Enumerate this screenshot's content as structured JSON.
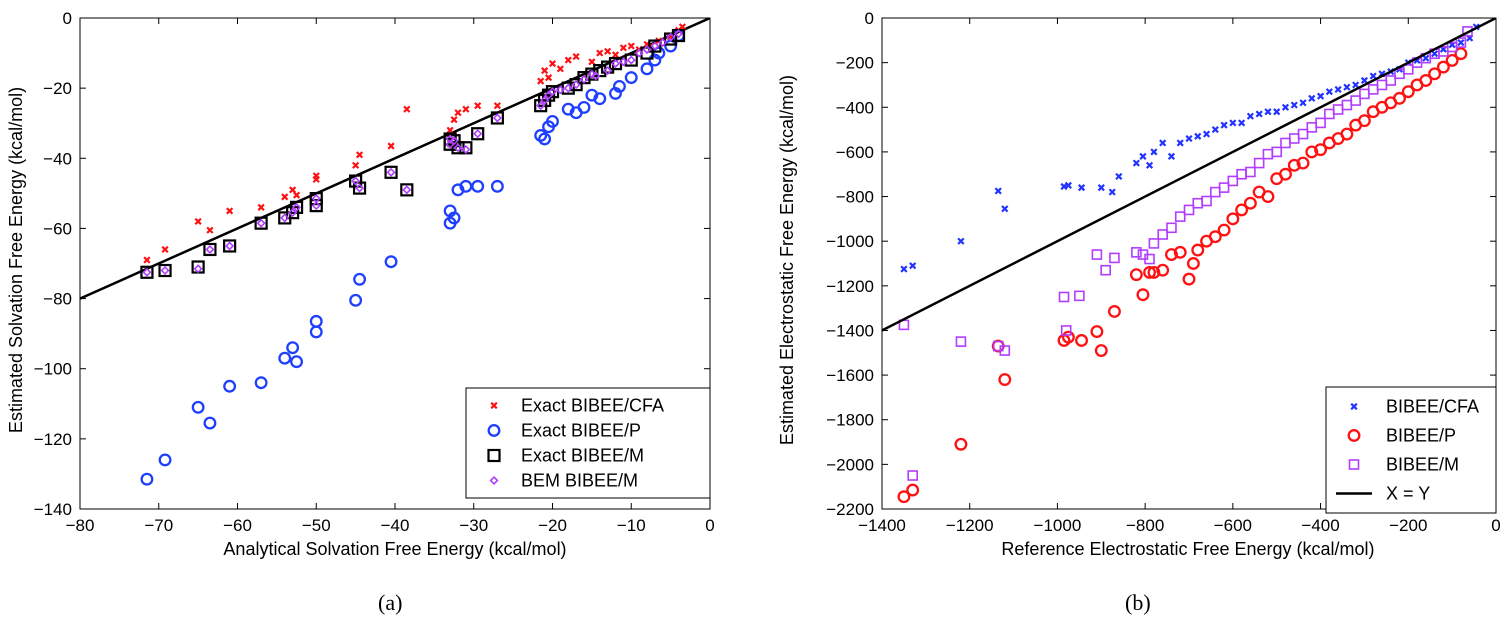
{
  "captions": [
    "(a)",
    "(b)"
  ],
  "colors": {
    "cfa": "#ff1111",
    "p": "#1f3fff",
    "m_exact": "#000000",
    "m_bem": "#b23cff",
    "b_cfa": "#2233ff",
    "b_p": "#ff1111",
    "b_m": "#b23cff",
    "line": "#000000"
  },
  "chart_data": [
    {
      "type": "scatter",
      "xlabel": "Analytical Solvation Free Energy (kcal/mol)",
      "ylabel": "Estimated Solvation Free Energy (kcal/mol)",
      "xlim": [
        -80,
        0
      ],
      "ylim": [
        -140,
        0
      ],
      "xticks": [
        "-80",
        "-70",
        "-60",
        "-50",
        "-40",
        "-30",
        "-20",
        "-10",
        "0"
      ],
      "yticks": [
        "-140",
        "-120",
        "-100",
        "-80",
        "-60",
        "-40",
        "-20",
        "0"
      ],
      "grid": false,
      "legend_position": "bottom-right",
      "reference_line": {
        "x": [
          -80,
          0
        ],
        "y": [
          -80,
          0
        ]
      },
      "series": [
        {
          "name": "Exact BIBEE/CFA",
          "marker": "x",
          "color_key": "cfa",
          "x": [
            -71.5,
            -69.2,
            -65,
            -63.5,
            -61,
            -57,
            -54,
            -53,
            -52.5,
            -50,
            -50,
            -45,
            -44.5,
            -40.5,
            -38.5,
            -33,
            -32.5,
            -32,
            -31,
            -29.5,
            -27,
            -21.5,
            -21,
            -20.5,
            -20,
            -19,
            -18,
            -17,
            -15,
            -14,
            -13,
            -12,
            -11,
            -10,
            -9,
            -8,
            -7.5,
            -6.5,
            -5,
            -4,
            -3.5
          ],
          "y": [
            -69,
            -66,
            -58,
            -60.5,
            -55,
            -54,
            -51,
            -49,
            -50.5,
            -45,
            -46,
            -42,
            -39,
            -36.5,
            -26,
            -32,
            -29,
            -27,
            -26,
            -25,
            -25,
            -18,
            -15,
            -17,
            -13,
            -14.5,
            -12,
            -11,
            -12.5,
            -10,
            -9.5,
            -10.5,
            -8.5,
            -8,
            -9,
            -7.5,
            -8,
            -6.5,
            -5.5,
            -3.5,
            -2.5
          ]
        },
        {
          "name": "Exact BIBEE/P",
          "marker": "o",
          "color_key": "p",
          "x": [
            -71.5,
            -69.2,
            -65,
            -63.5,
            -61,
            -57,
            -54,
            -53,
            -52.5,
            -50,
            -50,
            -45,
            -44.5,
            -40.5,
            -33,
            -33,
            -32.5,
            -32,
            -31,
            -29.5,
            -27,
            -21.5,
            -21,
            -20.5,
            -20,
            -18,
            -17,
            -16,
            -15,
            -14,
            -12,
            -11.5,
            -10,
            -8,
            -7,
            -6.5,
            -5,
            -4
          ],
          "y": [
            -131.5,
            -126,
            -111,
            -115.5,
            -105,
            -104,
            -97,
            -94,
            -98,
            -86.5,
            -89.5,
            -80.5,
            -74.5,
            -69.5,
            -55,
            -58.5,
            -57,
            -49,
            -48,
            -48,
            -48,
            -33.5,
            -34.5,
            -31,
            -29.5,
            -26,
            -27,
            -25.5,
            -22,
            -23,
            -21.5,
            -19.5,
            -17,
            -14.5,
            -12,
            -10,
            -8,
            -5
          ]
        },
        {
          "name": "Exact BIBEE/M",
          "marker": "square",
          "color_key": "m_exact",
          "x": [
            -71.5,
            -69.2,
            -65,
            -63.5,
            -61,
            -57,
            -54,
            -53,
            -52.5,
            -50,
            -50,
            -45,
            -44.5,
            -40.5,
            -38.5,
            -33,
            -33,
            -32.5,
            -32,
            -31,
            -29.5,
            -27,
            -21.5,
            -21,
            -20.5,
            -20,
            -18,
            -17,
            -16,
            -15,
            -14,
            -13,
            -12,
            -10,
            -8,
            -7,
            -5,
            -4
          ],
          "y": [
            -72.5,
            -72,
            -71,
            -66,
            -65,
            -58.5,
            -57,
            -55.5,
            -54,
            -51.5,
            -53.5,
            -46.5,
            -48.5,
            -44,
            -49,
            -34.5,
            -36,
            -35,
            -37,
            -37,
            -33,
            -28.5,
            -25,
            -23.5,
            -22,
            -21,
            -20,
            -19,
            -17,
            -16,
            -15,
            -14,
            -13,
            -12,
            -10,
            -8,
            -6,
            -5
          ]
        },
        {
          "name": "BEM BIBEE/M",
          "marker": "diamond",
          "color_key": "m_bem",
          "x": [
            -71.5,
            -69.2,
            -65,
            -63.5,
            -61,
            -57,
            -54,
            -53,
            -52.5,
            -50,
            -50,
            -45,
            -44.5,
            -40.5,
            -38.5,
            -33,
            -33,
            -32.5,
            -32,
            -31,
            -29.5,
            -27,
            -21.5,
            -21,
            -20.5,
            -20,
            -19,
            -18,
            -17,
            -16,
            -15,
            -14.5,
            -13,
            -12,
            -11,
            -10,
            -9,
            -8,
            -7,
            -6,
            -5,
            -4
          ],
          "y": [
            -72.5,
            -72,
            -71.5,
            -66,
            -65,
            -58.5,
            -57,
            -55.5,
            -54,
            -51.5,
            -53.5,
            -46.5,
            -48.5,
            -44,
            -49,
            -34.5,
            -36,
            -35,
            -37,
            -37.5,
            -33,
            -28.5,
            -25,
            -23.5,
            -22,
            -21,
            -20.5,
            -20,
            -19,
            -17.5,
            -16,
            -16.5,
            -15,
            -13,
            -12.5,
            -12,
            -10,
            -9,
            -8,
            -7,
            -5.5,
            -4.5
          ]
        }
      ]
    },
    {
      "type": "scatter",
      "xlabel": "Reference Electrostatic Free Energy (kcal/mol)",
      "ylabel": "Estimated Electrostatic Free Energy (kcal/mol)",
      "xlim": [
        -1400,
        0
      ],
      "ylim": [
        -2200,
        0
      ],
      "xticks": [
        "-1400",
        "-1200",
        "-1000",
        "-800",
        "-600",
        "-400",
        "-200",
        "0"
      ],
      "yticks": [
        "-2200",
        "-2000",
        "-1800",
        "-1600",
        "-1400",
        "-1200",
        "-1000",
        "-800",
        "-600",
        "-400",
        "-200",
        "0"
      ],
      "grid": false,
      "legend_position": "bottom-right",
      "series": [
        {
          "name": "BIBEE/CFA",
          "marker": "x",
          "color_key": "b_cfa",
          "x": [
            -1350,
            -1330,
            -1220,
            -1135,
            -1120,
            -985,
            -975,
            -945,
            -900,
            -875,
            -860,
            -820,
            -805,
            -790,
            -780,
            -760,
            -740,
            -720,
            -700,
            -680,
            -660,
            -640,
            -620,
            -600,
            -580,
            -560,
            -540,
            -520,
            -500,
            -480,
            -460,
            -440,
            -420,
            -400,
            -380,
            -360,
            -340,
            -320,
            -300,
            -280,
            -260,
            -240,
            -220,
            -200,
            -180,
            -160,
            -140,
            -120,
            -100,
            -80,
            -60,
            -45
          ],
          "y": [
            -1125,
            -1110,
            -1000,
            -775,
            -855,
            -755,
            -750,
            -760,
            -760,
            -780,
            -710,
            -650,
            -620,
            -660,
            -600,
            -560,
            -620,
            -560,
            -540,
            -530,
            -520,
            -500,
            -480,
            -470,
            -470,
            -440,
            -430,
            -420,
            -420,
            -400,
            -390,
            -380,
            -360,
            -350,
            -330,
            -320,
            -310,
            -300,
            -280,
            -260,
            -250,
            -240,
            -230,
            -200,
            -190,
            -180,
            -160,
            -140,
            -120,
            -110,
            -90,
            -40
          ]
        },
        {
          "name": "BIBEE/P",
          "marker": "o",
          "color_key": "b_p",
          "x": [
            -1350,
            -1330,
            -1220,
            -1135,
            -1120,
            -985,
            -975,
            -945,
            -910,
            -900,
            -870,
            -820,
            -805,
            -790,
            -780,
            -760,
            -740,
            -720,
            -700,
            -690,
            -680,
            -660,
            -640,
            -620,
            -600,
            -580,
            -560,
            -540,
            -520,
            -500,
            -480,
            -460,
            -440,
            -420,
            -400,
            -380,
            -360,
            -340,
            -320,
            -300,
            -280,
            -260,
            -240,
            -220,
            -200,
            -180,
            -160,
            -140,
            -120,
            -100,
            -80
          ],
          "y": [
            -2145,
            -2115,
            -1910,
            -1470,
            -1620,
            -1445,
            -1430,
            -1445,
            -1405,
            -1490,
            -1315,
            -1150,
            -1240,
            -1140,
            -1140,
            -1130,
            -1060,
            -1050,
            -1170,
            -1100,
            -1040,
            -1000,
            -980,
            -950,
            -900,
            -860,
            -830,
            -780,
            -800,
            -720,
            -700,
            -660,
            -650,
            -600,
            -590,
            -560,
            -540,
            -520,
            -480,
            -460,
            -420,
            -400,
            -380,
            -360,
            -330,
            -300,
            -280,
            -250,
            -220,
            -190,
            -160
          ]
        },
        {
          "name": "BIBEE/M",
          "marker": "square",
          "color_key": "b_m",
          "x": [
            -1350,
            -1330,
            -1220,
            -1135,
            -1120,
            -985,
            -980,
            -950,
            -910,
            -890,
            -870,
            -820,
            -805,
            -790,
            -780,
            -760,
            -740,
            -720,
            -700,
            -680,
            -660,
            -640,
            -620,
            -600,
            -580,
            -560,
            -540,
            -520,
            -500,
            -480,
            -460,
            -440,
            -420,
            -400,
            -380,
            -360,
            -340,
            -320,
            -300,
            -280,
            -260,
            -240,
            -220,
            -200,
            -180,
            -160,
            -140,
            -120,
            -100,
            -80,
            -65
          ],
          "y": [
            -1375,
            -2050,
            -1450,
            -1470,
            -1490,
            -1250,
            -1400,
            -1245,
            -1060,
            -1130,
            -1075,
            -1050,
            -1060,
            -1080,
            -1010,
            -970,
            -940,
            -890,
            -860,
            -830,
            -820,
            -780,
            -760,
            -730,
            -700,
            -690,
            -650,
            -610,
            -600,
            -560,
            -540,
            -520,
            -490,
            -470,
            -430,
            -410,
            -390,
            -370,
            -340,
            -320,
            -300,
            -280,
            -250,
            -230,
            -200,
            -180,
            -160,
            -150,
            -130,
            -110,
            -60
          ]
        },
        {
          "name": "X = Y",
          "marker": "line",
          "color_key": "line",
          "x": [
            -1400,
            0
          ],
          "y": [
            -1400,
            0
          ]
        }
      ]
    }
  ]
}
